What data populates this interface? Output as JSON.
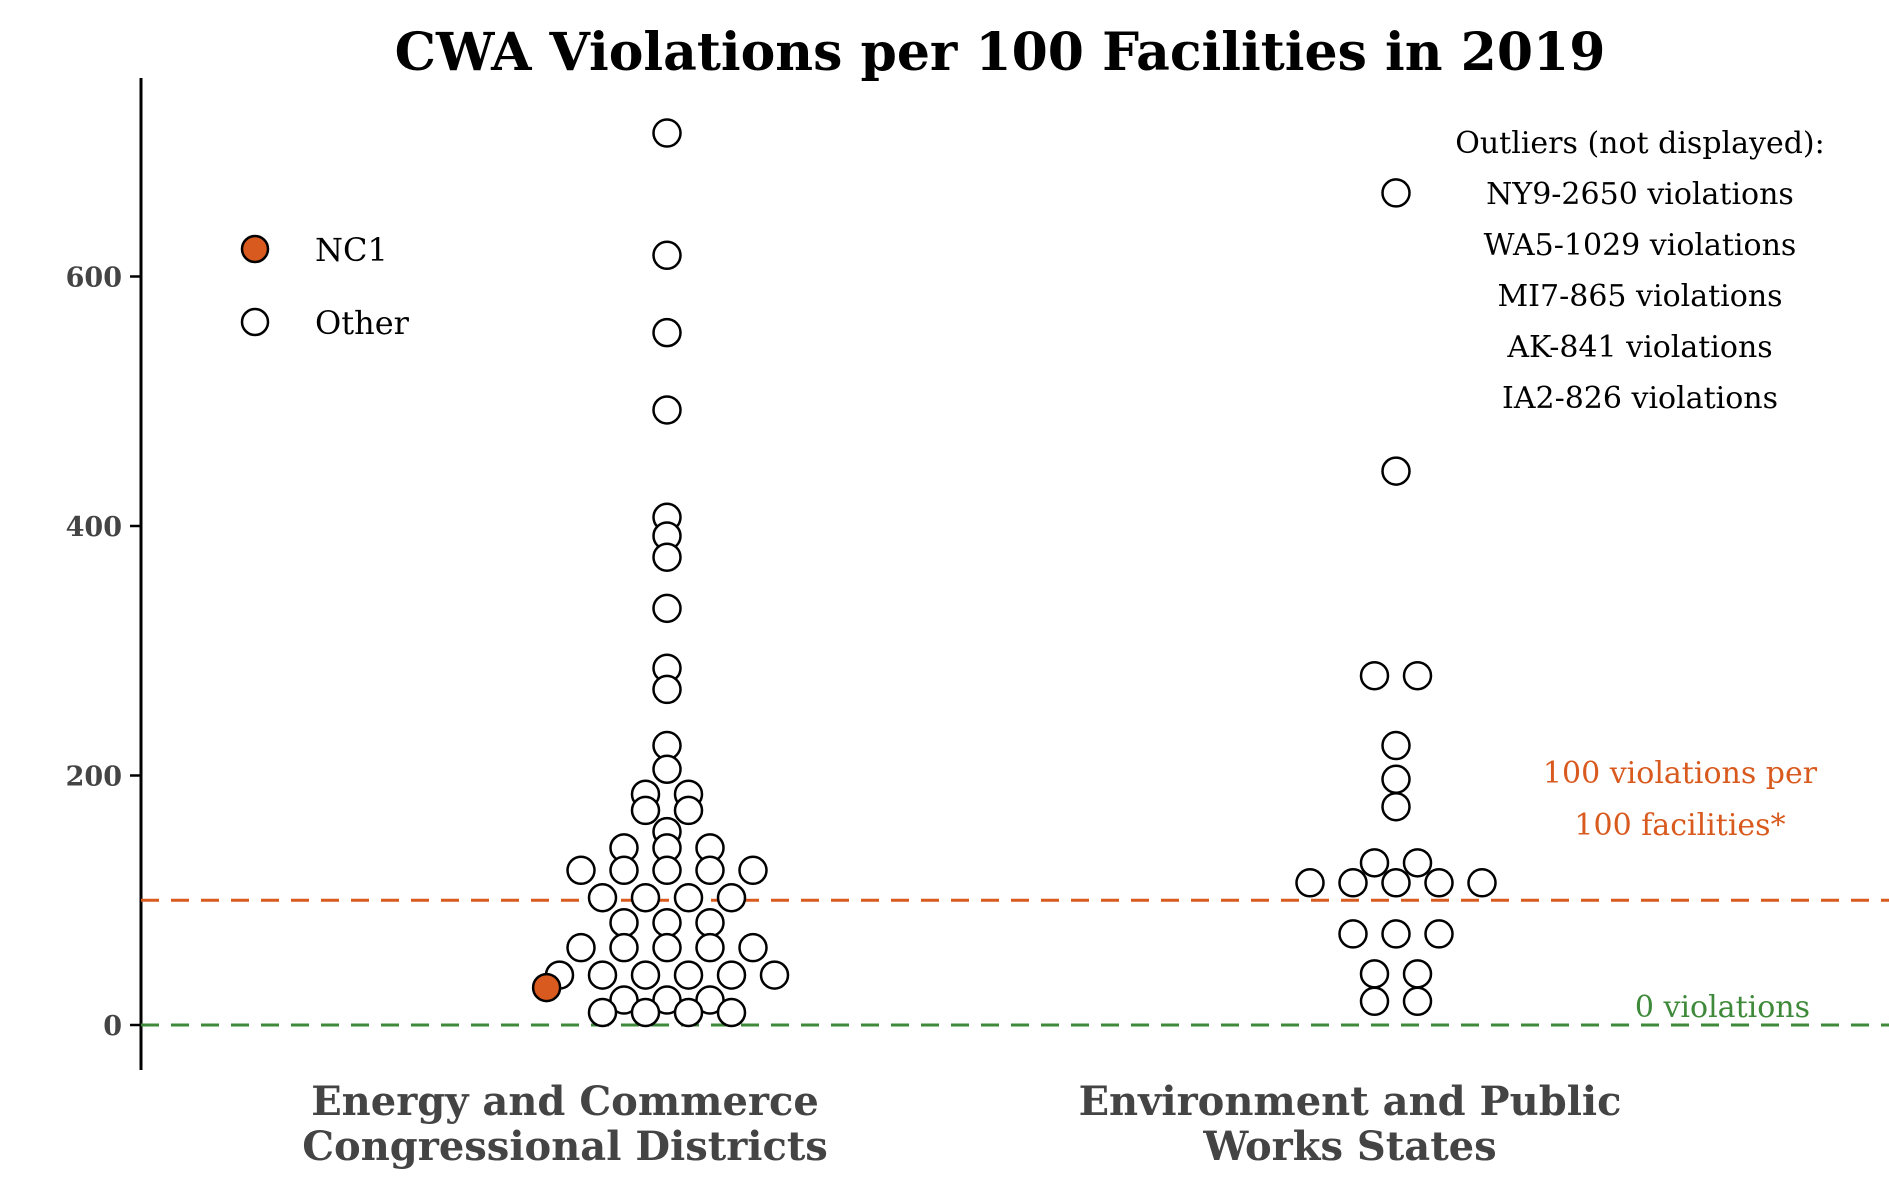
{
  "chart_data": {
    "type": "scatter",
    "title": "CWA Violations per 100 Facilities in 2019",
    "xlabel": "",
    "ylabel": "",
    "ylim": [
      -35,
      760
    ],
    "yticks": [
      0,
      200,
      400,
      600
    ],
    "categories": [
      [
        "Energy and Commerce",
        "Congressional Districts"
      ],
      [
        "Environment and Public",
        "Works States"
      ]
    ],
    "legend": {
      "placement": "top-left",
      "entries": [
        {
          "label": "NC1",
          "color": "#d95a1e"
        },
        {
          "label": "Other",
          "color": "#ffffff"
        }
      ]
    },
    "series": [
      {
        "name": "Other",
        "color": "#ffffff",
        "points": [
          {
            "c": 0,
            "o": 0,
            "y": 715
          },
          {
            "c": 0,
            "o": 0,
            "y": 617
          },
          {
            "c": 0,
            "o": 0,
            "y": 555
          },
          {
            "c": 0,
            "o": 0,
            "y": 493
          },
          {
            "c": 0,
            "o": 0,
            "y": 407
          },
          {
            "c": 0,
            "o": 0,
            "y": 392
          },
          {
            "c": 0,
            "o": 0,
            "y": 375
          },
          {
            "c": 0,
            "o": 0,
            "y": 334
          },
          {
            "c": 0,
            "o": 0,
            "y": 286
          },
          {
            "c": 0,
            "o": 0,
            "y": 269
          },
          {
            "c": 0,
            "o": 0,
            "y": 224
          },
          {
            "c": 0,
            "o": 0,
            "y": 205
          },
          {
            "c": 0,
            "o": -1,
            "y": 185
          },
          {
            "c": 0,
            "o": 1,
            "y": 185
          },
          {
            "c": 0,
            "o": -1,
            "y": 172
          },
          {
            "c": 0,
            "o": 1,
            "y": 172
          },
          {
            "c": 0,
            "o": 0,
            "y": 155
          },
          {
            "c": 0,
            "o": -2,
            "y": 142
          },
          {
            "c": 0,
            "o": 0,
            "y": 142
          },
          {
            "c": 0,
            "o": 2,
            "y": 142
          },
          {
            "c": 0,
            "o": -4,
            "y": 124
          },
          {
            "c": 0,
            "o": -2,
            "y": 124
          },
          {
            "c": 0,
            "o": 0,
            "y": 124
          },
          {
            "c": 0,
            "o": 2,
            "y": 124
          },
          {
            "c": 0,
            "o": 4,
            "y": 124
          },
          {
            "c": 0,
            "o": -3,
            "y": 102
          },
          {
            "c": 0,
            "o": -1,
            "y": 102
          },
          {
            "c": 0,
            "o": 1,
            "y": 102
          },
          {
            "c": 0,
            "o": 3,
            "y": 102
          },
          {
            "c": 0,
            "o": -2,
            "y": 82
          },
          {
            "c": 0,
            "o": 0,
            "y": 82
          },
          {
            "c": 0,
            "o": 2,
            "y": 82
          },
          {
            "c": 0,
            "o": -4,
            "y": 62
          },
          {
            "c": 0,
            "o": -2,
            "y": 62
          },
          {
            "c": 0,
            "o": 0,
            "y": 62
          },
          {
            "c": 0,
            "o": 2,
            "y": 62
          },
          {
            "c": 0,
            "o": 4,
            "y": 62
          },
          {
            "c": 0,
            "o": -5,
            "y": 40
          },
          {
            "c": 0,
            "o": -3,
            "y": 40
          },
          {
            "c": 0,
            "o": -1,
            "y": 40
          },
          {
            "c": 0,
            "o": 1,
            "y": 40
          },
          {
            "c": 0,
            "o": 3,
            "y": 40
          },
          {
            "c": 0,
            "o": 5,
            "y": 40
          },
          {
            "c": 0,
            "o": -2,
            "y": 20
          },
          {
            "c": 0,
            "o": 0,
            "y": 20
          },
          {
            "c": 0,
            "o": 2,
            "y": 20
          },
          {
            "c": 0,
            "o": -3,
            "y": 10
          },
          {
            "c": 0,
            "o": -1,
            "y": 10
          },
          {
            "c": 0,
            "o": 1,
            "y": 10
          },
          {
            "c": 0,
            "o": 3,
            "y": 10
          },
          {
            "c": 1,
            "o": 0,
            "y": 667
          },
          {
            "c": 1,
            "o": 0,
            "y": 444
          },
          {
            "c": 1,
            "o": -1,
            "y": 280
          },
          {
            "c": 1,
            "o": 1,
            "y": 280
          },
          {
            "c": 1,
            "o": 0,
            "y": 224
          },
          {
            "c": 1,
            "o": 0,
            "y": 197
          },
          {
            "c": 1,
            "o": 0,
            "y": 175
          },
          {
            "c": 1,
            "o": -1,
            "y": 130
          },
          {
            "c": 1,
            "o": 1,
            "y": 130
          },
          {
            "c": 1,
            "o": -4,
            "y": 114
          },
          {
            "c": 1,
            "o": -2,
            "y": 114
          },
          {
            "c": 1,
            "o": 0,
            "y": 114
          },
          {
            "c": 1,
            "o": 2,
            "y": 114
          },
          {
            "c": 1,
            "o": 4,
            "y": 114
          },
          {
            "c": 1,
            "o": -2,
            "y": 73
          },
          {
            "c": 1,
            "o": 0,
            "y": 73
          },
          {
            "c": 1,
            "o": 2,
            "y": 73
          },
          {
            "c": 1,
            "o": -1,
            "y": 41
          },
          {
            "c": 1,
            "o": 1,
            "y": 41
          },
          {
            "c": 1,
            "o": -1,
            "y": 19
          },
          {
            "c": 1,
            "o": 1,
            "y": 19
          }
        ]
      },
      {
        "name": "NC1",
        "color": "#d95a1e",
        "points": [
          {
            "c": 0,
            "o": -5.6,
            "y": 30
          }
        ]
      }
    ],
    "reference_lines": [
      {
        "y": 100,
        "color": "#d95a1e",
        "label": [
          "100 violations per",
          "100 facilities*"
        ]
      },
      {
        "y": 0,
        "color": "#3e8a3a",
        "label": [
          "0 violations"
        ]
      }
    ],
    "annotations": [
      "Outliers (not displayed):",
      "NY9-2650 violations",
      "WA5-1029 violations",
      "MI7-865 violations",
      "AK-841 violations",
      "IA2-826 violations"
    ]
  }
}
